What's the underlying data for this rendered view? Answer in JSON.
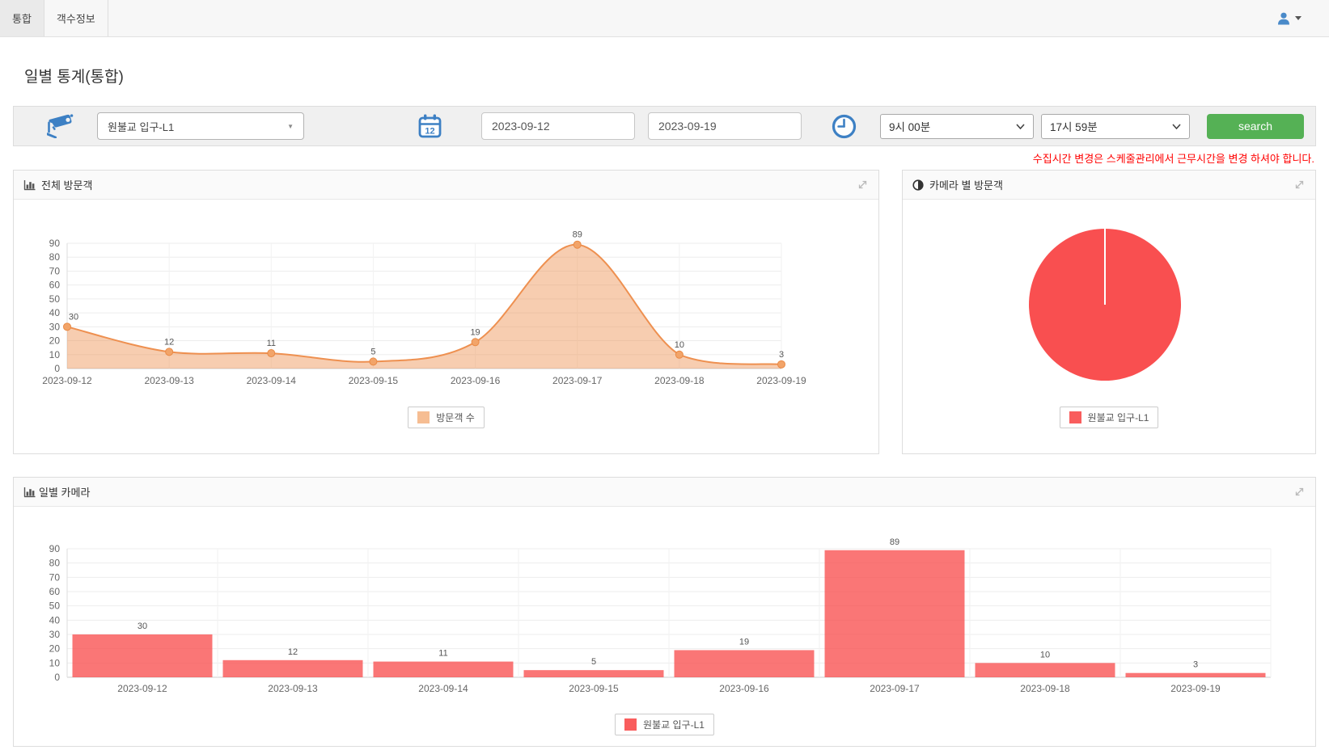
{
  "navbar": {
    "tabs": [
      {
        "label": "통합",
        "active": true
      },
      {
        "label": "객수정보",
        "active": false
      }
    ]
  },
  "page": {
    "title": "일별 통계(통합)"
  },
  "filters": {
    "camera_select": {
      "value": "원불교 입구-L1"
    },
    "calendar_icon_label": "12",
    "date_from": "2023-09-12",
    "date_to": "2023-09-19",
    "time_from": "9시 00분",
    "time_to": "17시 59분",
    "search_label": "search",
    "warning": "수집시간 변경은 스케줄관리에서 근무시간을 변경 하셔야 합니다."
  },
  "panels": {
    "total_visitors": {
      "title": "전체 방문객",
      "legend": "방문객 수"
    },
    "visitors_by_camera": {
      "title": "카메라 별 방문객",
      "legend": "원불교 입구-L1"
    },
    "daily_camera": {
      "title": "일별 카메라",
      "legend": "원불교 입구-L1"
    }
  },
  "colors": {
    "accent_blue": "#3d80c4",
    "search_green": "#55b155",
    "warning_red": "#ff0000",
    "area_line": "#ee9050",
    "area_fill": "rgba(238,144,80,0.45)",
    "area_marker": "#f2a469",
    "area_marker_stroke": "#ea8a45",
    "area_swatch": "#f6bd92",
    "pie_red": "#f94f50",
    "bar_fill": "rgba(249,79,80,0.78)",
    "red_swatch": "#f95d5d"
  },
  "chart_data": [
    {
      "type": "area",
      "title": "전체 방문객",
      "x": [
        "2023-09-12",
        "2023-09-13",
        "2023-09-14",
        "2023-09-15",
        "2023-09-16",
        "2023-09-17",
        "2023-09-18",
        "2023-09-19"
      ],
      "series": [
        {
          "name": "방문객 수",
          "values": [
            30,
            12,
            11,
            5,
            19,
            89,
            10,
            3
          ]
        }
      ],
      "ylim": [
        0,
        90
      ],
      "ytick_step": 10,
      "grid": true,
      "legend_position": "bottom"
    },
    {
      "type": "pie",
      "title": "카메라 별 방문객",
      "slices": [
        {
          "label": "원불교 입구-L1",
          "value": 100
        }
      ],
      "legend_position": "bottom"
    },
    {
      "type": "bar",
      "title": "일별 카메라",
      "categories": [
        "2023-09-12",
        "2023-09-13",
        "2023-09-14",
        "2023-09-15",
        "2023-09-16",
        "2023-09-17",
        "2023-09-18",
        "2023-09-19"
      ],
      "series": [
        {
          "name": "원불교 입구-L1",
          "values": [
            30,
            12,
            11,
            5,
            19,
            89,
            10,
            3
          ]
        }
      ],
      "ylim": [
        0,
        90
      ],
      "ytick_step": 10,
      "grid": true,
      "legend_position": "bottom"
    }
  ]
}
